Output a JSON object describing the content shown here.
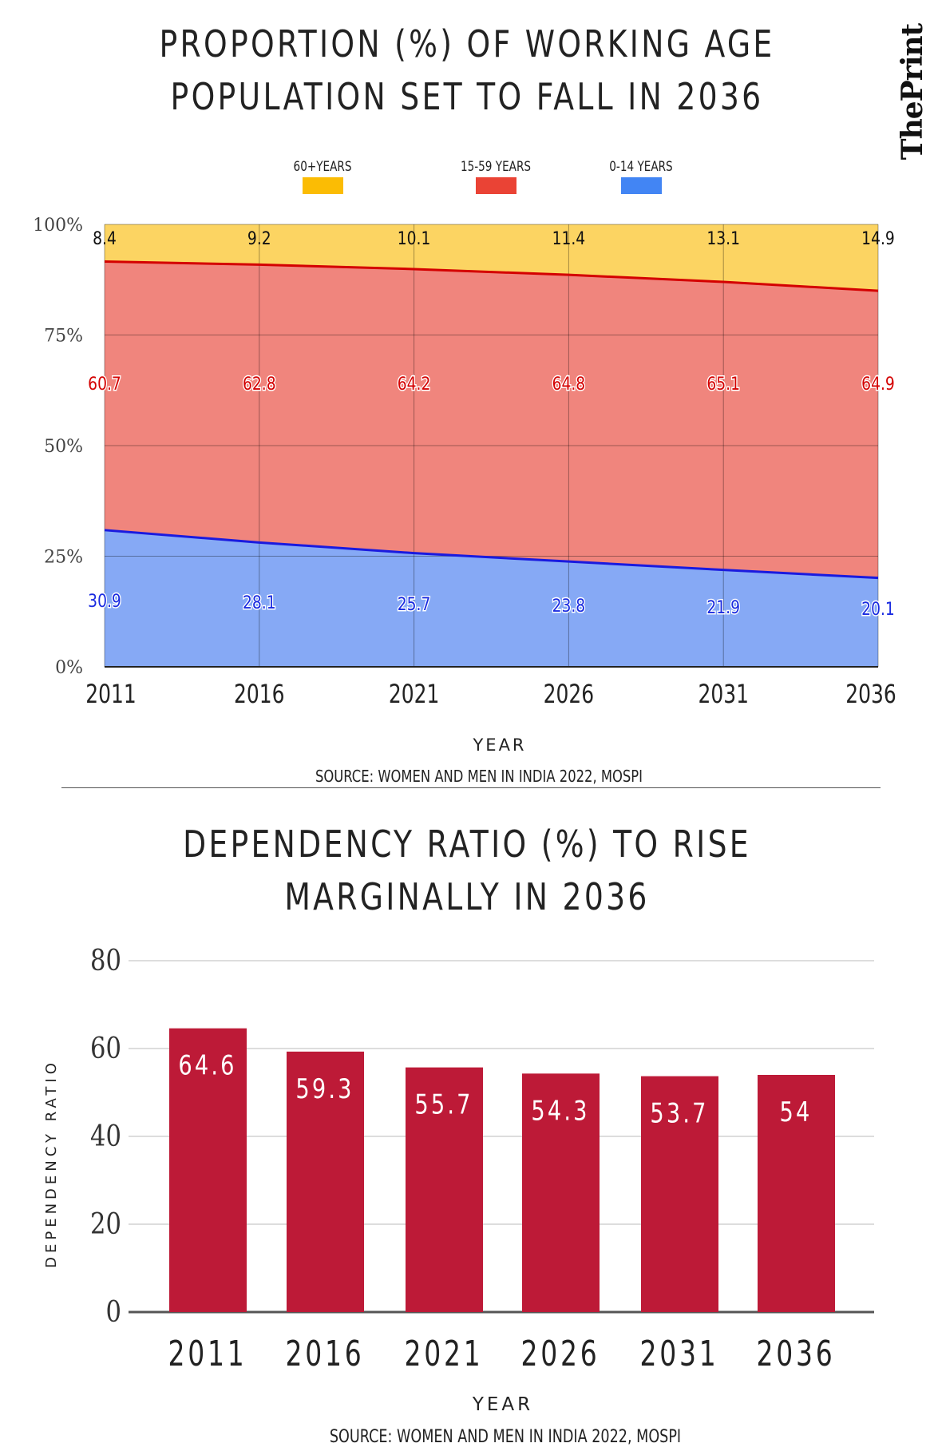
{
  "brand": "ThePrint",
  "chart_data": [
    {
      "type": "area",
      "stacked": true,
      "title": "PROPORTION (%) OF WORKING AGE POPULATION SET TO FALL IN 2036",
      "title_lines": [
        "PROPORTION (%) OF WORKING AGE",
        "POPULATION SET TO FALL IN 2036"
      ],
      "xlabel": "YEAR",
      "ylabel": "",
      "categories": [
        "2011",
        "2016",
        "2021",
        "2026",
        "2031",
        "2036"
      ],
      "yticks": [
        "0%",
        "25%",
        "50%",
        "75%",
        "100%"
      ],
      "ylim": [
        0,
        100
      ],
      "grid": true,
      "legend_position": "top",
      "series": [
        {
          "name": "0-14 YEARS",
          "values": [
            30.9,
            28.1,
            25.7,
            23.8,
            21.9,
            20.1
          ],
          "color": "#4285f4",
          "fill": "#86a9f5",
          "label_color": "#1a2be0"
        },
        {
          "name": "15-59 YEARS",
          "values": [
            60.7,
            62.8,
            64.2,
            64.8,
            65.1,
            64.9
          ],
          "color": "#ea4335",
          "fill": "#f0857d",
          "label_color": "#d40000"
        },
        {
          "name": "60+YEARS",
          "values": [
            8.4,
            9.2,
            10.1,
            11.4,
            13.1,
            14.9
          ],
          "color": "#fbbc04",
          "fill": "#fcd462",
          "label_color": "#111111"
        }
      ],
      "legend_order": [
        "60+YEARS",
        "15-59 YEARS",
        "0-14 YEARS"
      ],
      "source": "SOURCE: WOMEN AND MEN IN INDIA 2022, MOSPI"
    },
    {
      "type": "bar",
      "title": "DEPENDENCY RATIO (%) TO RISE MARGINALLY IN 2036",
      "title_lines": [
        "DEPENDENCY RATIO (%) TO RISE",
        "MARGINALLY IN 2036"
      ],
      "xlabel": "YEAR",
      "ylabel": "DEPENDENCY RATIO",
      "categories": [
        "2011",
        "2016",
        "2021",
        "2026",
        "2031",
        "2036"
      ],
      "values": [
        64.6,
        59.3,
        55.7,
        54.3,
        53.7,
        54
      ],
      "value_labels": [
        "64.6",
        "59.3",
        "55.7",
        "54.3",
        "53.7",
        "54"
      ],
      "yticks": [
        "0",
        "20",
        "40",
        "60",
        "80"
      ],
      "ylim": [
        0,
        80
      ],
      "grid": true,
      "bar_color": "#bd1a37",
      "source": "SOURCE: WOMEN AND MEN IN INDIA 2022, MOSPI"
    }
  ]
}
